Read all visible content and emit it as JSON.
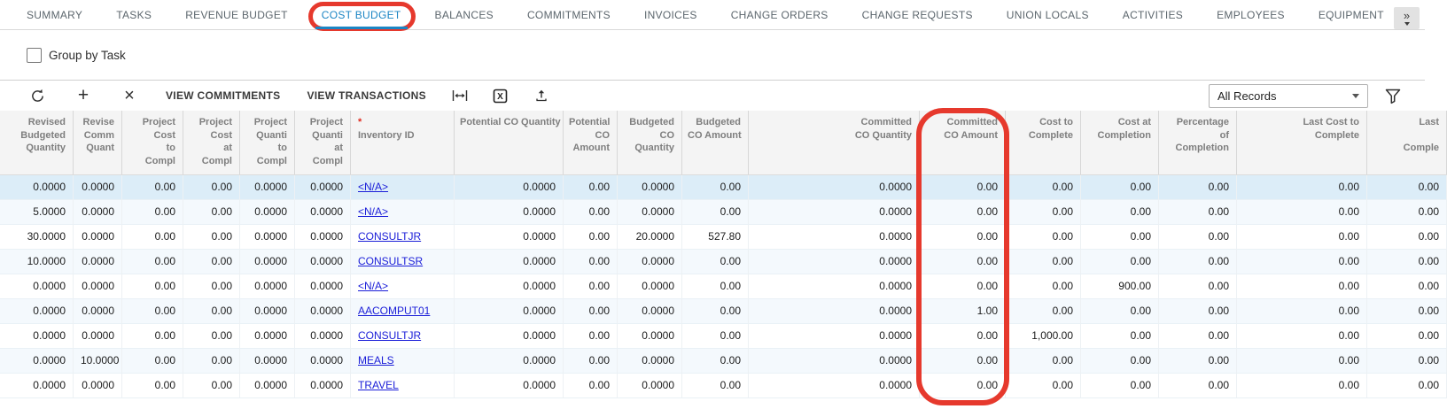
{
  "app": {
    "accent_blue": "#1b85c4",
    "annotation_red": "#e6392d",
    "link_blue": "#1a1dd8",
    "selected_row_color": "#dcedf8"
  },
  "tabs": {
    "overflow_glyph": "»",
    "items": [
      {
        "label": "SUMMARY"
      },
      {
        "label": "TASKS"
      },
      {
        "label": "REVENUE BUDGET"
      },
      {
        "label": "COST BUDGET",
        "active": true,
        "annotated": true
      },
      {
        "label": "BALANCES"
      },
      {
        "label": "COMMITMENTS"
      },
      {
        "label": "INVOICES"
      },
      {
        "label": "CHANGE ORDERS"
      },
      {
        "label": "CHANGE REQUESTS"
      },
      {
        "label": "UNION LOCALS"
      },
      {
        "label": "ACTIVITIES"
      },
      {
        "label": "EMPLOYEES"
      },
      {
        "label": "EQUIPMENT"
      }
    ]
  },
  "filters": {
    "group_by_task": {
      "label": "Group by Task",
      "checked": false
    }
  },
  "toolbar": {
    "add_glyph": "+",
    "delete_glyph": "×",
    "view_commitments_label": "VIEW COMMITMENTS",
    "view_transactions_label": "VIEW TRANSACTIONS",
    "records_filter_value": "All Records",
    "icons": {
      "refresh": "circular-refresh-arrow",
      "add": "plus",
      "delete": "x-cross",
      "fit_width": "fit-to-width-bars-arrow",
      "excel": "export-to-excel-x-box",
      "upload": "arrow-up-from-tray",
      "filter": "funnel",
      "tab_overflow": "double-chevron-right",
      "select_caret": "caret-down"
    }
  },
  "grid": {
    "required_mark": "*",
    "columns": [
      {
        "key": "revised-budgeted-quantity",
        "label": "Revised\nBudgeted\nQuantity",
        "width": 83,
        "align": "right"
      },
      {
        "key": "revised-committed-quantity",
        "label": "Revise\nComm\nQuant",
        "width": 55,
        "align": "right"
      },
      {
        "key": "project-cost-to-complete",
        "label": "Project\nCost\nto\nCompl",
        "width": 69,
        "align": "right"
      },
      {
        "key": "project-cost-at-completion",
        "label": "Project\nCost\nat\nCompl",
        "width": 64,
        "align": "right"
      },
      {
        "key": "project-quantity-to-complete",
        "label": "Project\nQuanti\nto\nCompl",
        "width": 62,
        "align": "right"
      },
      {
        "key": "project-quantity-at-completion",
        "label": "Project\nQuanti\nat\nCompl",
        "width": 63,
        "align": "right"
      },
      {
        "key": "inventory-id",
        "label": "Inventory ID",
        "width": 117,
        "align": "left",
        "required": true,
        "type": "link"
      },
      {
        "key": "potential-co-quantity",
        "label": "Potential CO Quantity",
        "width": 123,
        "align": "right"
      },
      {
        "key": "potential-co-amount",
        "label": "Potential\nCO\nAmount",
        "width": 61,
        "align": "right"
      },
      {
        "key": "budgeted-co-quantity",
        "label": "Budgeted\nCO\nQuantity",
        "width": 73,
        "align": "right"
      },
      {
        "key": "budgeted-co-amount",
        "label": "Budgeted\nCO Amount",
        "width": 75,
        "align": "right"
      },
      {
        "key": "committed-co-quantity",
        "label": "Committed\nCO Quantity",
        "width": 193,
        "align": "right"
      },
      {
        "key": "committed-co-amount",
        "label": "Committed\nCO Amount",
        "width": 97,
        "align": "right",
        "annotated": true
      },
      {
        "key": "cost-to-complete",
        "label": "Cost to\nComplete",
        "width": 85,
        "align": "right"
      },
      {
        "key": "cost-at-completion",
        "label": "Cost at\nCompletion",
        "width": 88,
        "align": "right"
      },
      {
        "key": "percentage-of-completion",
        "label": "Percentage\nof\nCompletion",
        "width": 88,
        "align": "right"
      },
      {
        "key": "last-cost-to-complete",
        "label": "Last Cost to\nComplete",
        "width": 147,
        "align": "right"
      },
      {
        "key": "last-completion",
        "label": "Last\n\nComple",
        "width": 90,
        "align": "right"
      }
    ],
    "rows": [
      {
        "selected": true,
        "cells": [
          "0.0000",
          "0.0000",
          "0.00",
          "0.00",
          "0.0000",
          "0.0000",
          "<N/A>",
          "0.0000",
          "0.00",
          "0.0000",
          "0.00",
          "0.0000",
          "0.00",
          "0.00",
          "0.00",
          "0.00",
          "0.00",
          "0.00"
        ]
      },
      {
        "cells": [
          "5.0000",
          "0.0000",
          "0.00",
          "0.00",
          "0.0000",
          "0.0000",
          "<N/A>",
          "0.0000",
          "0.00",
          "0.0000",
          "0.00",
          "0.0000",
          "0.00",
          "0.00",
          "0.00",
          "0.00",
          "0.00",
          "0.00"
        ]
      },
      {
        "cells": [
          "30.0000",
          "0.0000",
          "0.00",
          "0.00",
          "0.0000",
          "0.0000",
          "CONSULTJR",
          "0.0000",
          "0.00",
          "20.0000",
          "527.80",
          "0.0000",
          "0.00",
          "0.00",
          "0.00",
          "0.00",
          "0.00",
          "0.00"
        ]
      },
      {
        "cells": [
          "10.0000",
          "0.0000",
          "0.00",
          "0.00",
          "0.0000",
          "0.0000",
          "CONSULTSR",
          "0.0000",
          "0.00",
          "0.0000",
          "0.00",
          "0.0000",
          "0.00",
          "0.00",
          "0.00",
          "0.00",
          "0.00",
          "0.00"
        ]
      },
      {
        "cells": [
          "0.0000",
          "0.0000",
          "0.00",
          "0.00",
          "0.0000",
          "0.0000",
          "<N/A>",
          "0.0000",
          "0.00",
          "0.0000",
          "0.00",
          "0.0000",
          "0.00",
          "0.00",
          "900.00",
          "0.00",
          "0.00",
          "0.00"
        ]
      },
      {
        "cells": [
          "0.0000",
          "0.0000",
          "0.00",
          "0.00",
          "0.0000",
          "0.0000",
          "AACOMPUT01",
          "0.0000",
          "0.00",
          "0.0000",
          "0.00",
          "0.0000",
          "1.00",
          "0.00",
          "0.00",
          "0.00",
          "0.00",
          "0.00"
        ]
      },
      {
        "cells": [
          "0.0000",
          "0.0000",
          "0.00",
          "0.00",
          "0.0000",
          "0.0000",
          "CONSULTJR",
          "0.0000",
          "0.00",
          "0.0000",
          "0.00",
          "0.0000",
          "0.00",
          "1,000.00",
          "0.00",
          "0.00",
          "0.00",
          "0.00"
        ]
      },
      {
        "cells": [
          "0.0000",
          "10.0000",
          "0.00",
          "0.00",
          "0.0000",
          "0.0000",
          "MEALS",
          "0.0000",
          "0.00",
          "0.0000",
          "0.00",
          "0.0000",
          "0.00",
          "0.00",
          "0.00",
          "0.00",
          "0.00",
          "0.00"
        ]
      },
      {
        "cells": [
          "0.0000",
          "0.0000",
          "0.00",
          "0.00",
          "0.0000",
          "0.0000",
          "TRAVEL",
          "0.0000",
          "0.00",
          "0.0000",
          "0.00",
          "0.0000",
          "0.00",
          "0.00",
          "0.00",
          "0.00",
          "0.00",
          "0.00"
        ]
      }
    ]
  }
}
